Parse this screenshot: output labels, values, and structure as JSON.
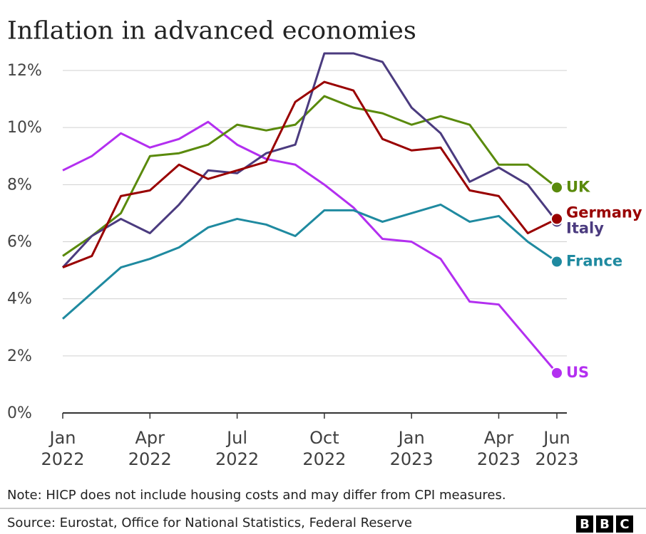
{
  "chart_data": {
    "type": "line",
    "title": "Inflation in advanced economies",
    "x": [
      "2022-01",
      "2022-02",
      "2022-03",
      "2022-04",
      "2022-05",
      "2022-06",
      "2022-07",
      "2022-08",
      "2022-09",
      "2022-10",
      "2022-11",
      "2022-12",
      "2023-01",
      "2023-02",
      "2023-03",
      "2023-04",
      "2023-05",
      "2023-06"
    ],
    "xlim": [
      "2022-01",
      "2023-06"
    ],
    "xticks": [
      {
        "value": "2022-01",
        "label": "Jan 2022"
      },
      {
        "value": "2022-04",
        "label": "Apr 2022"
      },
      {
        "value": "2022-07",
        "label": "Jul 2022"
      },
      {
        "value": "2022-10",
        "label": "Oct 2022"
      },
      {
        "value": "2023-01",
        "label": "Jan 2023"
      },
      {
        "value": "2023-04",
        "label": "Apr 2023"
      },
      {
        "value": "2023-06",
        "label": "Jun 2023"
      }
    ],
    "ylim": [
      0,
      12
    ],
    "yticks": [
      {
        "value": 0,
        "label": "0%"
      },
      {
        "value": 2,
        "label": "2%"
      },
      {
        "value": 4,
        "label": "4%"
      },
      {
        "value": 6,
        "label": "6%"
      },
      {
        "value": 8,
        "label": "8%"
      },
      {
        "value": 10,
        "label": "10%"
      },
      {
        "value": 12,
        "label": "12%"
      }
    ],
    "grid": true,
    "series": [
      {
        "name": "UK",
        "color": "#5a8a0c",
        "values": [
          5.5,
          6.2,
          7.0,
          9.0,
          9.1,
          9.4,
          10.1,
          9.9,
          10.1,
          11.1,
          10.7,
          10.5,
          10.1,
          10.4,
          10.1,
          8.7,
          8.7,
          7.9
        ]
      },
      {
        "name": "Germany",
        "color": "#990000",
        "values": [
          5.1,
          5.5,
          7.6,
          7.8,
          8.7,
          8.2,
          8.5,
          8.8,
          10.9,
          11.6,
          11.3,
          9.6,
          9.2,
          9.3,
          7.8,
          7.6,
          6.3,
          6.8
        ]
      },
      {
        "name": "Italy",
        "color": "#4b3b7f",
        "values": [
          5.1,
          6.2,
          6.8,
          6.3,
          7.3,
          8.5,
          8.4,
          9.1,
          9.4,
          12.6,
          12.6,
          12.3,
          10.7,
          9.8,
          8.1,
          8.6,
          8.0,
          6.7
        ]
      },
      {
        "name": "France",
        "color": "#1f8aa0",
        "values": [
          3.3,
          4.2,
          5.1,
          5.4,
          5.8,
          6.5,
          6.8,
          6.6,
          6.2,
          7.1,
          7.1,
          6.7,
          7.0,
          7.3,
          6.7,
          6.9,
          6.0,
          5.3
        ]
      },
      {
        "name": "US",
        "color": "#b32ff0",
        "values": [
          8.5,
          9.0,
          9.8,
          9.3,
          9.6,
          10.2,
          9.4,
          8.9,
          8.7,
          8.0,
          7.2,
          6.1,
          6.0,
          5.4,
          3.9,
          3.8,
          2.6,
          1.4
        ]
      }
    ],
    "note": "Note: HICP does not include housing costs and may differ from CPI measures.",
    "source": "Source: Eurostat, Office for National Statistics, Federal Reserve",
    "branding": "BBC"
  }
}
